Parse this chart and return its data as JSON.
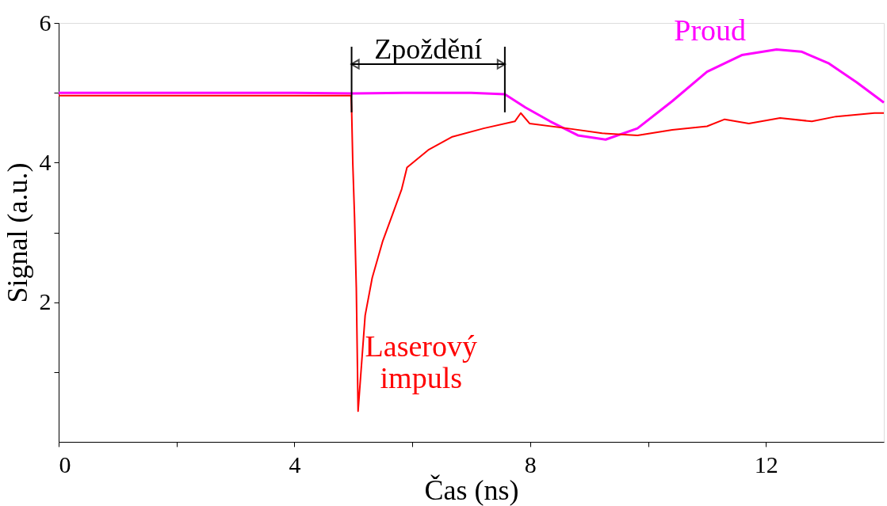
{
  "chart_data": {
    "type": "line",
    "xlabel": "Čas (ns)",
    "ylabel": "Signal (a.u.)",
    "xlim": [
      0,
      14
    ],
    "ylim": [
      0,
      6
    ],
    "xticks": [
      0,
      {
        "value": 2,
        "label": null
      },
      4,
      {
        "value": 6,
        "label": null
      },
      8,
      {
        "value": 10,
        "label": null
      },
      12
    ],
    "yticks": [
      {
        "value": 1,
        "label": null
      },
      2,
      {
        "value": 3,
        "label": null
      },
      4,
      {
        "value": 5,
        "label": null
      },
      6
    ],
    "grid": false,
    "legend": false,
    "marker": "none",
    "line_style": "solid",
    "annotations": [
      {
        "text": "Zpoždění",
        "x": 4.97,
        "y": 4.96
      }
    ],
    "series": [
      {
        "name": "Proud",
        "color": "#ff00ff",
        "x": [
          0,
          1,
          2,
          3,
          4,
          5,
          6,
          7,
          7.57,
          7.92,
          8.34,
          8.81,
          9.28,
          9.82,
          10.41,
          11.0,
          11.59,
          12.18,
          12.6,
          13.07,
          13.54,
          14.0
        ],
        "values": [
          5.0,
          5.0,
          5.0,
          5.0,
          5.0,
          4.99,
          5.0,
          5.0,
          4.98,
          4.79,
          4.59,
          4.39,
          4.33,
          4.49,
          4.88,
          5.3,
          5.54,
          5.62,
          5.59,
          5.42,
          5.15,
          4.86
        ]
      },
      {
        "name": "Laserový impuls",
        "color": "#ff0000",
        "x": [
          0,
          1,
          2,
          3,
          4,
          4.96,
          4.97,
          4.99,
          5.02,
          5.05,
          5.08,
          5.2,
          5.32,
          5.5,
          5.67,
          5.82,
          5.91,
          6.27,
          6.68,
          7.21,
          7.74,
          7.84,
          7.99,
          8.63,
          9.22,
          9.82,
          10.41,
          11.0,
          11.3,
          11.71,
          12.24,
          12.78,
          13.19,
          13.84,
          14.0
        ],
        "values": [
          4.96,
          4.96,
          4.96,
          4.96,
          4.96,
          4.96,
          4.78,
          4.0,
          3.22,
          2.21,
          0.44,
          1.81,
          2.35,
          2.88,
          3.27,
          3.62,
          3.93,
          4.18,
          4.37,
          4.49,
          4.59,
          4.71,
          4.56,
          4.49,
          4.42,
          4.39,
          4.47,
          4.52,
          4.62,
          4.56,
          4.64,
          4.59,
          4.66,
          4.71,
          4.71
        ]
      }
    ]
  }
}
